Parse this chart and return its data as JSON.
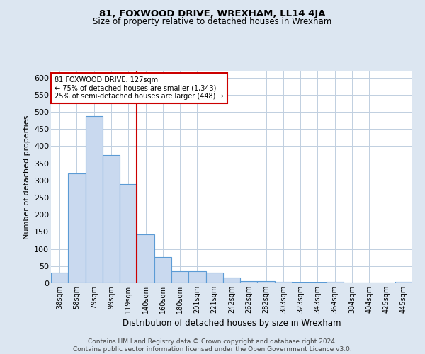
{
  "title": "81, FOXWOOD DRIVE, WREXHAM, LL14 4JA",
  "subtitle": "Size of property relative to detached houses in Wrexham",
  "xlabel": "Distribution of detached houses by size in Wrexham",
  "ylabel": "Number of detached properties",
  "categories": [
    "38sqm",
    "58sqm",
    "79sqm",
    "99sqm",
    "119sqm",
    "140sqm",
    "160sqm",
    "180sqm",
    "201sqm",
    "221sqm",
    "242sqm",
    "262sqm",
    "282sqm",
    "303sqm",
    "323sqm",
    "343sqm",
    "364sqm",
    "384sqm",
    "404sqm",
    "425sqm",
    "445sqm"
  ],
  "values": [
    32,
    320,
    487,
    375,
    290,
    143,
    77,
    35,
    35,
    30,
    17,
    7,
    6,
    5,
    3,
    2,
    5,
    0,
    0,
    0,
    5
  ],
  "bar_color": "#c9d9ef",
  "bar_edge_color": "#5b9bd5",
  "bar_edge_width": 0.8,
  "vline_x_index": 4.5,
  "vline_color": "#cc0000",
  "annotation_text": "81 FOXWOOD DRIVE: 127sqm\n← 75% of detached houses are smaller (1,343)\n25% of semi-detached houses are larger (448) →",
  "annotation_box_color": "#ffffff",
  "annotation_box_edge_color": "#cc0000",
  "ylim": [
    0,
    620
  ],
  "yticks": [
    0,
    50,
    100,
    150,
    200,
    250,
    300,
    350,
    400,
    450,
    500,
    550,
    600
  ],
  "footer": "Contains HM Land Registry data © Crown copyright and database right 2024.\nContains public sector information licensed under the Open Government Licence v3.0.",
  "background_color": "#dce6f1",
  "plot_bg_color": "#ffffff",
  "grid_color": "#c0cfe0",
  "title_fontsize": 9.5,
  "subtitle_fontsize": 8.5,
  "ylabel_fontsize": 8,
  "xlabel_fontsize": 8.5,
  "ytick_fontsize": 8,
  "xtick_fontsize": 7,
  "annotation_fontsize": 7,
  "footer_fontsize": 6.5
}
